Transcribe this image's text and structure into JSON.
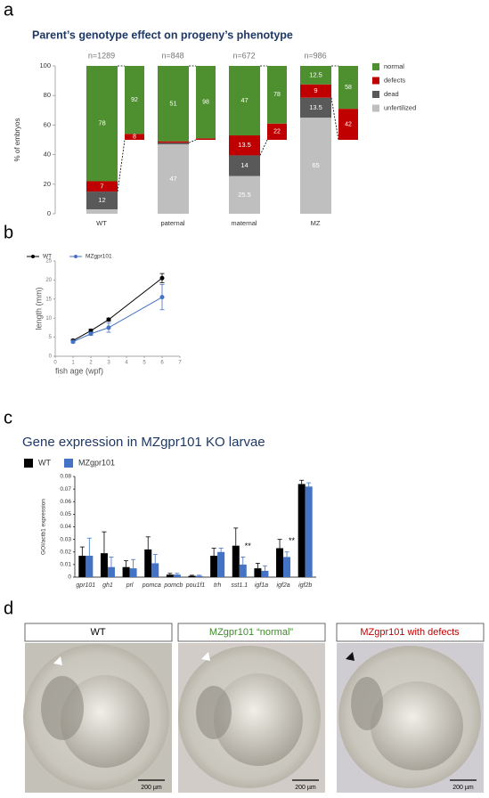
{
  "panels": [
    "a",
    "b",
    "c",
    "d"
  ],
  "chart_data": [
    {
      "type": "stacked-bar",
      "title": "Parent’s genotype effect on progeny’s phenotype",
      "ylabel": "% of embryos",
      "categories": [
        "WT",
        "paternal",
        "maternal",
        "MZ"
      ],
      "counts": [
        "n=1289",
        "n=848",
        "n=672",
        "n=986"
      ],
      "ylim": [
        0,
        100
      ],
      "yticks": [
        0,
        20,
        40,
        60,
        80,
        100
      ],
      "series": [
        {
          "name": "unfertilized",
          "color": "#bfbfbf",
          "values": [
            3,
            47,
            25.5,
            65
          ],
          "value_labels": [
            null,
            "47",
            "25.5",
            "65"
          ]
        },
        {
          "name": "dead",
          "color": "#595959",
          "values": [
            12,
            1,
            14,
            13.5
          ],
          "value_labels": [
            "12",
            null,
            "14",
            "13.5"
          ]
        },
        {
          "name": "defects",
          "color": "#c00000",
          "values": [
            7,
            1,
            13.5,
            9
          ],
          "value_labels": [
            "7",
            null,
            "13.5",
            "9"
          ]
        },
        {
          "name": "normal",
          "color": "#4e8f2f",
          "values": [
            78,
            51,
            47,
            12.5
          ],
          "value_labels": [
            "78",
            "51",
            "47",
            "12.5"
          ]
        }
      ],
      "live_series": [
        {
          "color": "#c00000",
          "values": [
            8,
            2,
            22,
            42
          ],
          "value_labels": [
            "8",
            null,
            "22",
            "42"
          ]
        },
        {
          "color": "#4e8f2f",
          "values": [
            92,
            98,
            78,
            58
          ],
          "value_labels": [
            "92",
            "98",
            "78",
            "58"
          ]
        }
      ]
    },
    {
      "type": "line",
      "xlabel": "fish age (wpf)",
      "ylabel": "length (mm)",
      "x": [
        1,
        2,
        3,
        6
      ],
      "xlim": [
        0,
        7
      ],
      "xticks": [
        0,
        1,
        2,
        3,
        4,
        5,
        6,
        7
      ],
      "ylim": [
        0,
        25
      ],
      "yticks": [
        0,
        5,
        10,
        15,
        20,
        25
      ],
      "series": [
        {
          "name": "WT",
          "color": "#000000",
          "values": [
            4.1,
            6.7,
            9.6,
            20.5
          ],
          "errors": [
            0.3,
            0.4,
            0.4,
            1.2
          ]
        },
        {
          "name": "MZgpr101",
          "color": "#4472c4",
          "values": [
            3.8,
            5.9,
            7.5,
            15.5
          ],
          "errors": [
            0.3,
            0.4,
            1.2,
            3.3
          ]
        }
      ]
    },
    {
      "type": "grouped-bar",
      "title": "Gene expression in MZgpr101 KO larvae",
      "ylabel": "GOI/actb1 expression",
      "categories": [
        "gpr101",
        "gh1",
        "prl",
        "pomca",
        "pomcb",
        "pou1f1",
        "trh",
        "sst1.1",
        "igf1a",
        "igf2a",
        "igf2b"
      ],
      "ylim": [
        0,
        0.08
      ],
      "yticks": [
        0,
        0.01,
        0.02,
        0.03,
        0.04,
        0.05,
        0.06,
        0.07,
        0.08
      ],
      "annotations": [
        null,
        null,
        null,
        null,
        null,
        null,
        null,
        "**",
        null,
        "**",
        null
      ],
      "series": [
        {
          "name": "WT",
          "color": "#000000",
          "values": [
            0.017,
            0.019,
            0.008,
            0.022,
            0.002,
            0.001,
            0.017,
            0.025,
            0.007,
            0.023,
            0.074
          ],
          "errors": [
            0.007,
            0.017,
            0.005,
            0.01,
            0.001,
            0.0005,
            0.006,
            0.014,
            0.004,
            0.007,
            0.003
          ]
        },
        {
          "name": "MZgpr101",
          "color": "#4472c4",
          "values": [
            0.017,
            0.008,
            0.007,
            0.011,
            0.002,
            0.001,
            0.02,
            0.01,
            0.005,
            0.016,
            0.072
          ],
          "errors": [
            0.014,
            0.008,
            0.007,
            0.007,
            0.001,
            0.0005,
            0.003,
            0.006,
            0.004,
            0.004,
            0.003
          ]
        }
      ]
    }
  ],
  "images": {
    "labels": [
      "WT",
      "MZgpr101 “normal”",
      "MZgpr101 with defects"
    ],
    "scale_bars": [
      "200 µm",
      "200 µm",
      "200 µm"
    ]
  }
}
